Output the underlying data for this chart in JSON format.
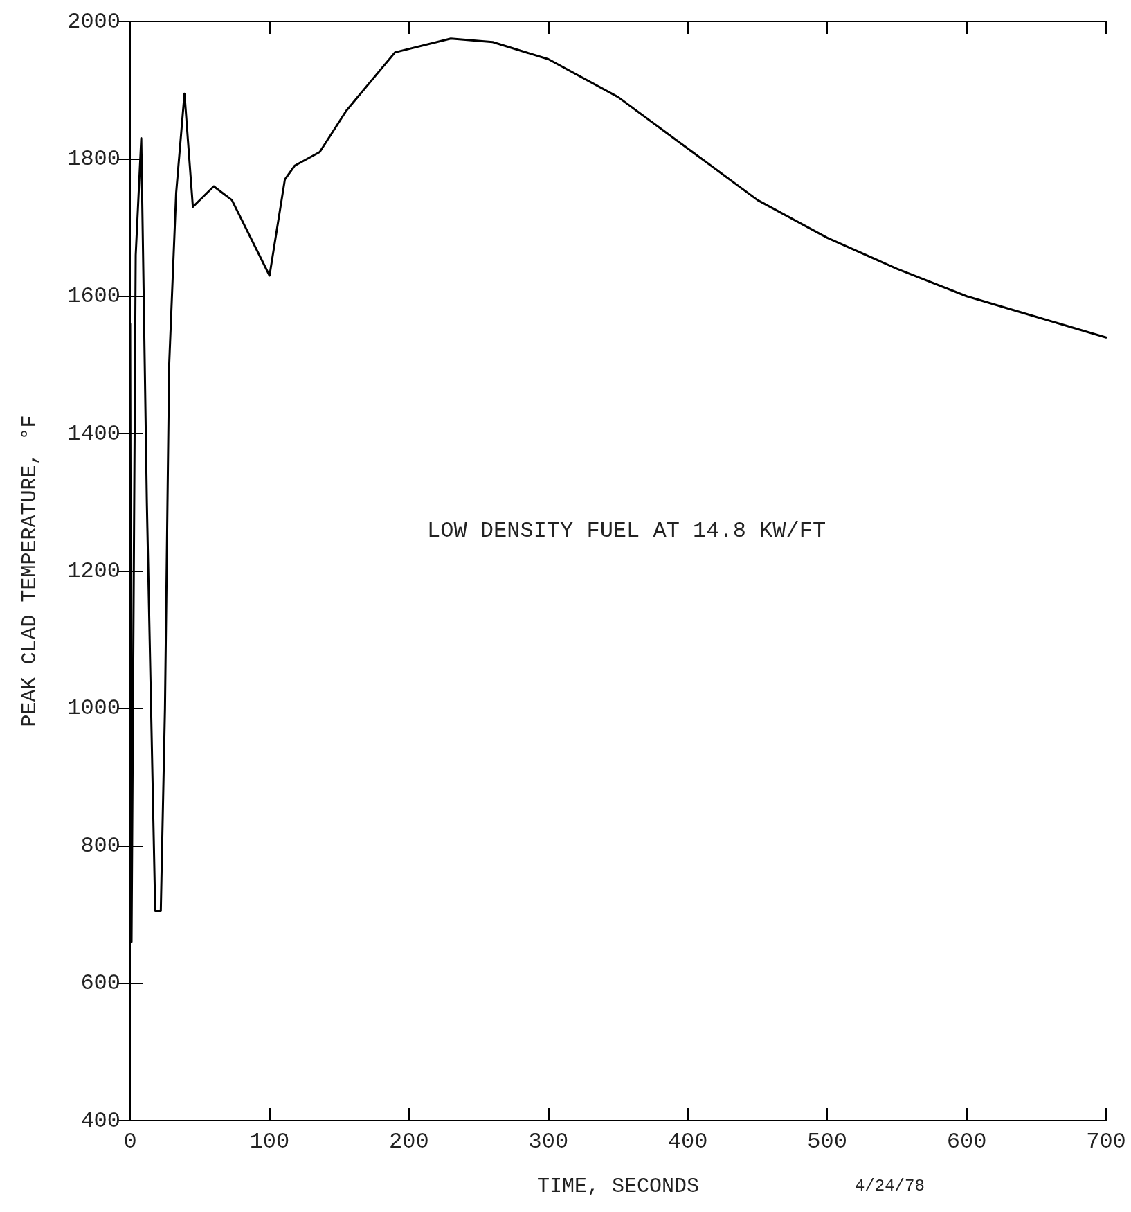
{
  "chart_data": {
    "type": "line",
    "xlabel": "TIME, SECONDS",
    "ylabel": "PEAK CLAD TEMPERATURE, °F",
    "annotations": [
      "LOW DENSITY FUEL AT 14.8 KW/FT",
      "4/24/78"
    ],
    "x": [
      0,
      1,
      4,
      8,
      12,
      18,
      22,
      25,
      28,
      33,
      39,
      45,
      60,
      73,
      100,
      111,
      118,
      136,
      155,
      190,
      230,
      260,
      300,
      350,
      400,
      450,
      500,
      550,
      600,
      650,
      700
    ],
    "series": [
      {
        "color": "#000000",
        "values": [
          1560,
          660,
          1660,
          1830,
          1300,
          705,
          705,
          1000,
          1500,
          1750,
          1895,
          1730,
          1760,
          1740,
          1630,
          1770,
          1790,
          1810,
          1870,
          1955,
          1975,
          1970,
          1945,
          1890,
          1815,
          1740,
          1685,
          1640,
          1600,
          1570,
          1540
        ]
      }
    ],
    "xlim": [
      0,
      700
    ],
    "xticks": [
      0,
      100,
      200,
      300,
      400,
      500,
      600,
      700
    ],
    "ylim": [
      400,
      2000
    ],
    "yticks": [
      400,
      600,
      800,
      1000,
      1200,
      1400,
      1600,
      1800,
      2000
    ],
    "grid": false,
    "marker": "none",
    "line_style": "solid"
  }
}
